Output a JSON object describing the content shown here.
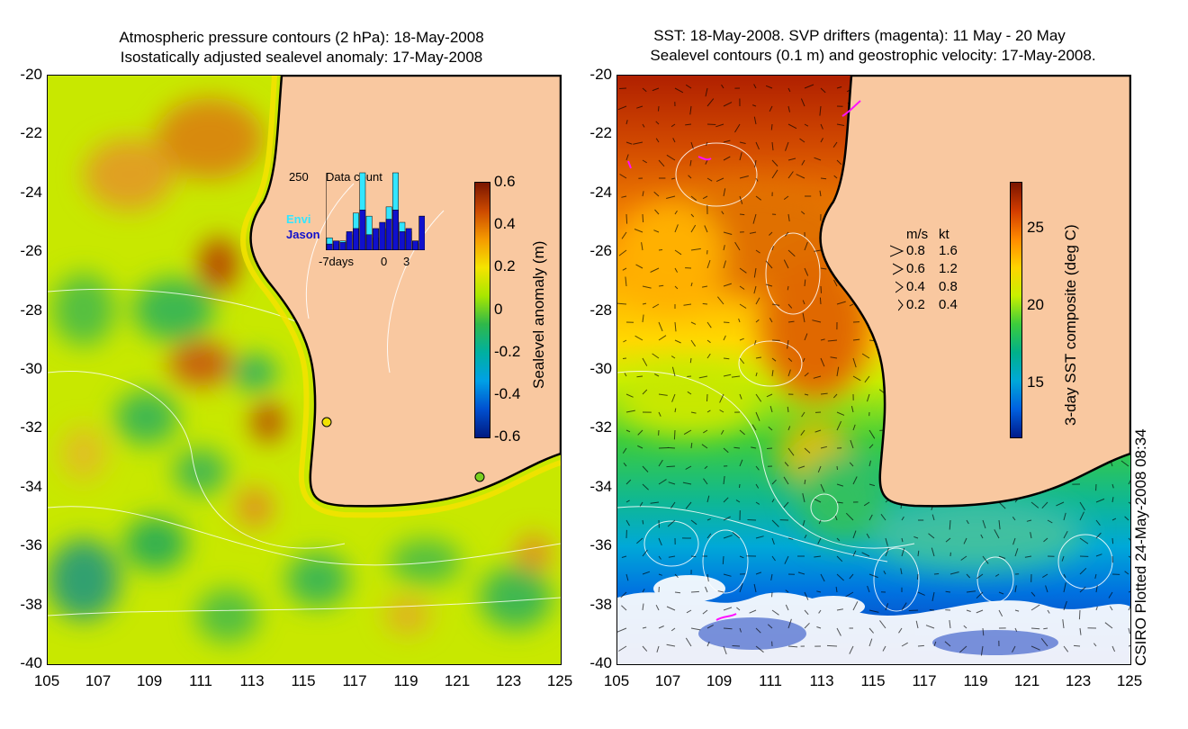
{
  "left_panel": {
    "title_line1": "Atmospheric pressure contours (2 hPa): 18-May-2008",
    "title_line2": "Isostatically adjusted sealevel anomaly: 17-May-2008",
    "x_ticks": [
      "105",
      "107",
      "109",
      "111",
      "113",
      "115",
      "117",
      "119",
      "121",
      "123",
      "125"
    ],
    "y_ticks": [
      "-20",
      "-22",
      "-24",
      "-26",
      "-28",
      "-30",
      "-32",
      "-34",
      "-36",
      "-38",
      "-40"
    ],
    "colorbar": {
      "label": "Sealevel anomaly (m)",
      "ticks": [
        "0.6",
        "0.4",
        "0.2",
        "0",
        "-0.2",
        "-0.4",
        "-0.6"
      ],
      "range": [
        -0.6,
        0.6
      ],
      "colors": [
        "#7a1500",
        "#cc4a00",
        "#f59a00",
        "#f5e400",
        "#a8e600",
        "#2fb84a",
        "#00b0a0",
        "#00a0e6",
        "#0050d0",
        "#001a80"
      ]
    },
    "inset": {
      "title": "Data count",
      "max_label": "250",
      "series": [
        {
          "name": "Envi",
          "color": "#33e6ff",
          "values": [
            40,
            20,
            30,
            50,
            120,
            250,
            110,
            40,
            70,
            140,
            250,
            90,
            60,
            30,
            110
          ]
        },
        {
          "name": "Jason",
          "color": "#1010cc",
          "values": [
            20,
            30,
            25,
            60,
            70,
            130,
            50,
            70,
            90,
            100,
            130,
            60,
            70,
            30,
            110
          ]
        }
      ],
      "x_labels": [
        "-7days",
        "0",
        "3"
      ]
    }
  },
  "right_panel": {
    "title_line1": "SST: 18-May-2008. SVP drifters (magenta): 11 May - 20 May",
    "title_line2": "Sealevel contours (0.1 m) and geostrophic velocity: 17-May-2008.",
    "x_ticks": [
      "105",
      "107",
      "109",
      "111",
      "113",
      "115",
      "117",
      "119",
      "121",
      "123",
      "125"
    ],
    "y_ticks": [
      "-20",
      "-22",
      "-24",
      "-26",
      "-28",
      "-30",
      "-32",
      "-34",
      "-36",
      "-38",
      "-40"
    ],
    "colorbar": {
      "label": "3-day SST composite (deg C)",
      "ticks": [
        "25",
        "20",
        "15"
      ],
      "range": [
        11.5,
        28
      ],
      "colors": [
        "#7a1500",
        "#d23c00",
        "#ff8a00",
        "#ffd400",
        "#c8f000",
        "#3ccc3c",
        "#00b08a",
        "#00a8d8",
        "#0060e0",
        "#001a8a"
      ]
    },
    "velocity_legend": {
      "header_ms": "m/s",
      "header_kt": "kt",
      "rows": [
        {
          "ms": "0.8",
          "kt": "1.6"
        },
        {
          "ms": "0.6",
          "kt": "1.2"
        },
        {
          "ms": "0.4",
          "kt": "0.8"
        },
        {
          "ms": "0.2",
          "kt": "0.4"
        }
      ]
    }
  },
  "footer_credit": "CSIRO Plotted 24-May-2008 08:34",
  "land_color": "#f9c8a0"
}
